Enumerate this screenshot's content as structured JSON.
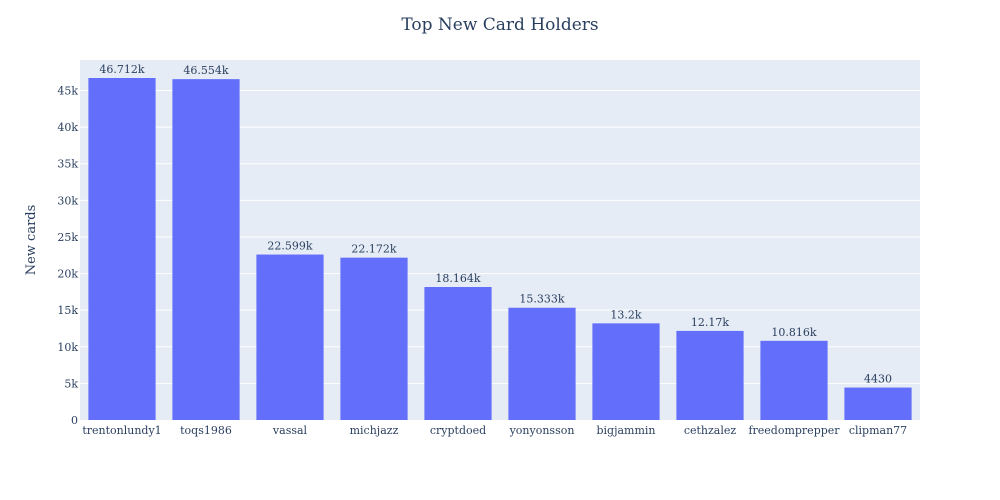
{
  "chart_data": {
    "type": "bar",
    "title": "Top New Card Holders",
    "xlabel": "",
    "ylabel": "New cards",
    "categories": [
      "trentonlundy1",
      "toqs1986",
      "vassal",
      "michjazz",
      "cryptdoed",
      "yonyonsson",
      "bigjammin",
      "cethzalez",
      "freedomprepper",
      "clipman77"
    ],
    "values": [
      46712,
      46554,
      22599,
      22172,
      18164,
      15333,
      13200,
      12170,
      10816,
      4430
    ],
    "data_labels": [
      "46.712k",
      "46.554k",
      "22.599k",
      "22.172k",
      "18.164k",
      "15.333k",
      "13.2k",
      "12.17k",
      "10.816k",
      "4430"
    ],
    "ylim": [
      0,
      49170
    ],
    "yticks": [
      0,
      5000,
      10000,
      15000,
      20000,
      25000,
      30000,
      35000,
      40000,
      45000
    ],
    "ytick_labels": [
      "0",
      "5k",
      "10k",
      "15k",
      "20k",
      "25k",
      "30k",
      "35k",
      "40k",
      "45k"
    ],
    "grid": true,
    "colors": {
      "bar": "#636efa",
      "plot_bg": "#e5ecf6",
      "grid": "#ffffff",
      "text": "#2a3f5f"
    }
  }
}
